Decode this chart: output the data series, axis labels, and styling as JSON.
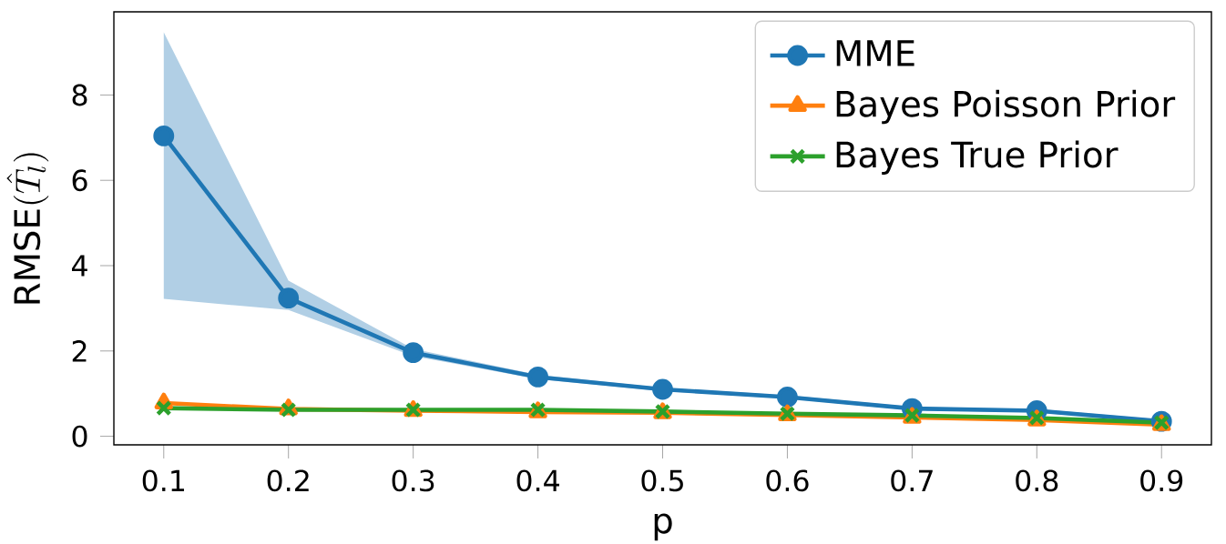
{
  "chart_data": {
    "type": "line",
    "xlabel": "p",
    "ylabel": "\\mathrm{RMSE}(\\hat{T}_l)",
    "x": [
      0.1,
      0.2,
      0.3,
      0.4,
      0.5,
      0.6,
      0.7,
      0.8,
      0.9
    ],
    "series": [
      {
        "name": "MME",
        "color": "#1f77b4",
        "marker": "circle",
        "values": [
          7.04,
          3.24,
          1.96,
          1.39,
          1.1,
          0.92,
          0.65,
          0.6,
          0.35
        ],
        "lower": [
          3.22,
          2.96,
          1.88,
          1.34,
          1.06,
          0.88,
          0.61,
          0.56,
          0.31
        ],
        "upper": [
          9.47,
          3.65,
          2.05,
          1.44,
          1.14,
          0.96,
          0.69,
          0.64,
          0.39
        ]
      },
      {
        "name": "Bayes Poisson Prior",
        "color": "#ff7f0e",
        "marker": "triangle",
        "values": [
          0.78,
          0.64,
          0.6,
          0.57,
          0.55,
          0.5,
          0.44,
          0.38,
          0.27
        ]
      },
      {
        "name": "Bayes True Prior",
        "color": "#2ca02c",
        "marker": "cross",
        "values": [
          0.66,
          0.62,
          0.62,
          0.62,
          0.58,
          0.53,
          0.49,
          0.43,
          0.32
        ]
      }
    ],
    "xlim": [
      0.06,
      0.94
    ],
    "ylim": [
      -0.2,
      9.95
    ],
    "xticks": [
      0.1,
      0.2,
      0.3,
      0.4,
      0.5,
      0.6,
      0.7,
      0.8,
      0.9
    ],
    "yticks": [
      0,
      2,
      4,
      6,
      8
    ],
    "legend": "top right"
  }
}
